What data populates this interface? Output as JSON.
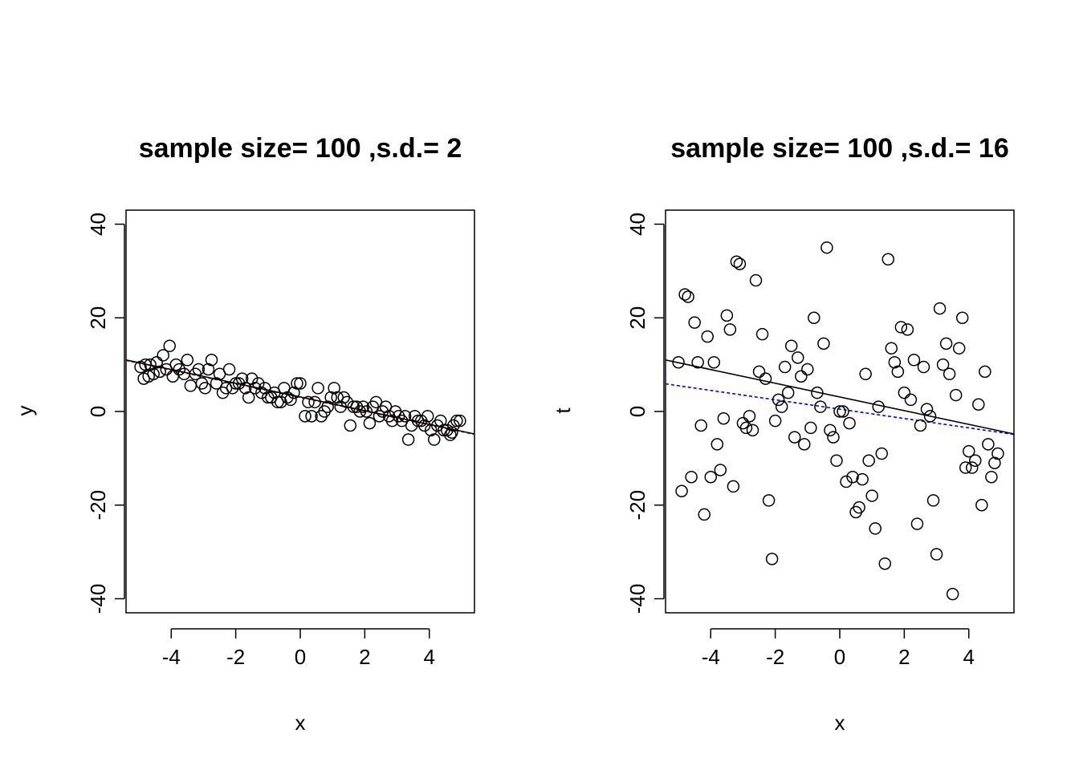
{
  "chart_data": [
    {
      "type": "scatter",
      "title": "sample size= 100 ,s.d.= 2",
      "xlabel": "x",
      "ylabel": "y",
      "xlim": [
        -5.4,
        5.4
      ],
      "ylim": [
        -43,
        43
      ],
      "xticks": [
        -4,
        -2,
        0,
        2,
        4
      ],
      "yticks": [
        -40,
        -20,
        0,
        20,
        40
      ],
      "grid": false,
      "colors": {
        "points": "#000000",
        "fit": "#000000",
        "true_line": "#cc0000"
      },
      "points": {
        "x": [
          -4.95,
          -4.85,
          -4.8,
          -4.7,
          -4.65,
          -4.55,
          -4.45,
          -4.35,
          -4.25,
          -4.15,
          -4.05,
          -3.95,
          -3.85,
          -3.75,
          -3.6,
          -3.5,
          -3.4,
          -3.25,
          -3.15,
          -3.05,
          -2.95,
          -2.85,
          -2.75,
          -2.6,
          -2.5,
          -2.4,
          -2.3,
          -2.2,
          -2.1,
          -2.0,
          -1.9,
          -1.8,
          -1.7,
          -1.6,
          -1.5,
          -1.4,
          -1.3,
          -1.2,
          -1.1,
          -1.0,
          -0.9,
          -0.8,
          -0.7,
          -0.6,
          -0.5,
          -0.4,
          -0.3,
          -0.2,
          -0.1,
          0.0,
          0.15,
          0.25,
          0.35,
          0.45,
          0.55,
          0.65,
          0.75,
          0.85,
          0.95,
          1.05,
          1.15,
          1.25,
          1.35,
          1.45,
          1.55,
          1.65,
          1.75,
          1.85,
          1.95,
          2.05,
          2.15,
          2.25,
          2.35,
          2.45,
          2.55,
          2.65,
          2.75,
          2.85,
          2.95,
          3.05,
          3.15,
          3.25,
          3.35,
          3.45,
          3.55,
          3.65,
          3.75,
          3.85,
          3.95,
          4.05,
          4.15,
          4.25,
          4.35,
          4.45,
          4.55,
          4.65,
          4.75,
          4.85,
          4.95,
          4.7
        ],
        "y": [
          9.5,
          7,
          10,
          7.5,
          10,
          8,
          10.5,
          8.5,
          12,
          9,
          14,
          7.5,
          10,
          9,
          8,
          11,
          5.5,
          8,
          9,
          6,
          5,
          9,
          11,
          6,
          8,
          4,
          5,
          9,
          5,
          6,
          6,
          7,
          5,
          3,
          7,
          5,
          6,
          4,
          5,
          3,
          3,
          4,
          2,
          2,
          5,
          3,
          2.5,
          4,
          6,
          6,
          -1,
          2,
          -1,
          2,
          5,
          -1,
          0,
          1,
          3,
          5,
          3,
          1,
          3,
          2,
          -3,
          1,
          1,
          0,
          1,
          0,
          -2.5,
          1,
          2,
          -1,
          0,
          1,
          -1,
          -2,
          0,
          -1,
          -2,
          -1,
          -6,
          -3,
          -1,
          -2,
          -2,
          -3,
          -1,
          -4,
          -6,
          -3,
          -2,
          -4,
          -4,
          -5,
          -3,
          -2,
          -2,
          -4.5
        ]
      },
      "fit_line": {
        "x": [
          -5.4,
          5.4
        ],
        "y": [
          11.0,
          -4.8
        ]
      },
      "true_line": {
        "x": [
          -5.4,
          5.4
        ],
        "y": [
          10.9,
          -4.9
        ]
      }
    },
    {
      "type": "scatter",
      "title": "sample size= 100 ,s.d.= 16",
      "xlabel": "x",
      "ylabel": "t",
      "xlim": [
        -5.4,
        5.4
      ],
      "ylim": [
        -43,
        43
      ],
      "xticks": [
        -4,
        -2,
        0,
        2,
        4
      ],
      "yticks": [
        -40,
        -20,
        0,
        20,
        40
      ],
      "grid": false,
      "colors": {
        "points": "#000000",
        "fit": "#000000",
        "true_line": "#0000ff"
      },
      "points": {
        "x": [
          -5.0,
          -4.9,
          -4.8,
          -4.7,
          -4.6,
          -4.5,
          -4.4,
          -4.3,
          -4.2,
          -4.1,
          -4.0,
          -3.9,
          -3.8,
          -3.7,
          -3.6,
          -3.5,
          -3.4,
          -3.3,
          -3.2,
          -3.1,
          -3.0,
          -2.9,
          -2.8,
          -2.7,
          -2.6,
          -2.5,
          -2.4,
          -2.3,
          -2.2,
          -2.1,
          -2.0,
          -1.9,
          -1.8,
          -1.7,
          -1.6,
          -1.5,
          -1.4,
          -1.3,
          -1.2,
          -1.1,
          -1.0,
          -0.9,
          -0.8,
          -0.7,
          -0.6,
          -0.5,
          -0.4,
          -0.3,
          -0.2,
          -0.1,
          0.0,
          0.1,
          0.2,
          0.3,
          0.4,
          0.5,
          0.6,
          0.7,
          0.8,
          0.9,
          1.0,
          1.1,
          1.2,
          1.3,
          1.4,
          1.5,
          1.6,
          1.7,
          1.8,
          1.9,
          2.0,
          2.1,
          2.2,
          2.3,
          2.4,
          2.5,
          2.6,
          2.7,
          2.8,
          2.9,
          3.0,
          3.1,
          3.2,
          3.3,
          3.4,
          3.5,
          3.6,
          3.7,
          3.8,
          3.9,
          4.0,
          4.1,
          4.2,
          4.3,
          4.4,
          4.5,
          4.6,
          4.7,
          4.8,
          4.9
        ],
        "y": [
          10.5,
          -17,
          25,
          24.5,
          -14,
          19,
          10.5,
          -3,
          -22,
          16,
          -14,
          10.5,
          -7,
          -12.5,
          -1.5,
          20.5,
          17.5,
          -16,
          32,
          31.5,
          -2.5,
          -3.5,
          -1,
          -4,
          28,
          8.5,
          16.5,
          7,
          -19,
          -31.5,
          -2,
          2.5,
          1,
          9.5,
          4,
          14,
          -5.5,
          11.5,
          7.5,
          -7,
          9,
          -3.5,
          20,
          4,
          1,
          14.5,
          35,
          -4,
          -5.5,
          -10.5,
          0,
          0,
          -15,
          -2.5,
          -14,
          -21.5,
          -20.5,
          -14.5,
          8,
          -10.5,
          -18,
          -25,
          1,
          -9,
          -32.5,
          32.5,
          13.5,
          10.5,
          8.5,
          18,
          4,
          17.5,
          2.5,
          11,
          -24,
          -3,
          9.5,
          0.5,
          -1,
          -19,
          -30.5,
          22,
          10,
          14.5,
          8,
          -39,
          3.5,
          13.5,
          20,
          -12,
          -8.5,
          -12,
          -10.5,
          1.5,
          -20,
          8.5,
          -7,
          -14,
          -11,
          -9
        ]
      },
      "fit_line": {
        "x": [
          -5.4,
          5.4
        ],
        "y": [
          11.0,
          -4.8
        ]
      },
      "true_line": {
        "x": [
          -5.4,
          5.4
        ],
        "y": [
          5.9,
          -4.9
        ]
      }
    }
  ]
}
